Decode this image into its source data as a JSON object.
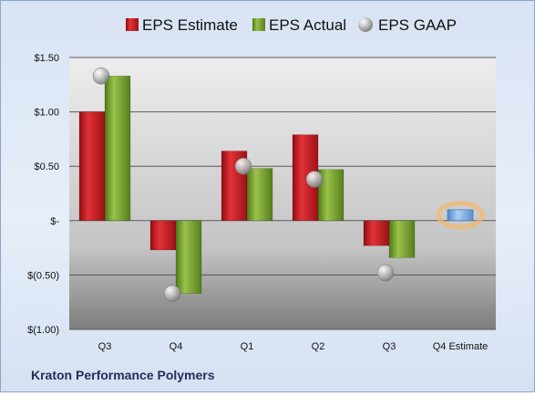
{
  "chart_data": {
    "type": "bar",
    "categories": [
      "Q3",
      "Q4",
      "Q1",
      "Q2",
      "Q3",
      "Q4 Estimate"
    ],
    "series": [
      {
        "name": "EPS Estimate",
        "values": [
          1.0,
          -0.27,
          0.64,
          0.79,
          -0.23,
          null
        ],
        "color": "#c0161c"
      },
      {
        "name": "EPS Actual",
        "values": [
          1.33,
          -0.67,
          0.48,
          0.47,
          -0.34,
          null
        ],
        "color": "#74a22c"
      },
      {
        "name": "EPS GAAP",
        "values": [
          1.33,
          -0.67,
          0.5,
          0.38,
          -0.48,
          null
        ],
        "color": "#a9a9a9"
      },
      {
        "name": "Q4 Estimate",
        "values": [
          null,
          null,
          null,
          null,
          null,
          0.1
        ],
        "color": "#7aaee8",
        "highlight": "#f5b66a"
      }
    ],
    "ylim": [
      -1.0,
      1.5
    ],
    "yticks": [
      1.5,
      1.0,
      0.5,
      0.0,
      -0.5,
      -1.0
    ],
    "ytick_labels": [
      "$1.50",
      "$1.00",
      "$0.50",
      "$-",
      "$(0.50)",
      "$(1.00)"
    ],
    "grid": true,
    "legend_position": "top",
    "company": "Kraton Performance Polymers"
  }
}
